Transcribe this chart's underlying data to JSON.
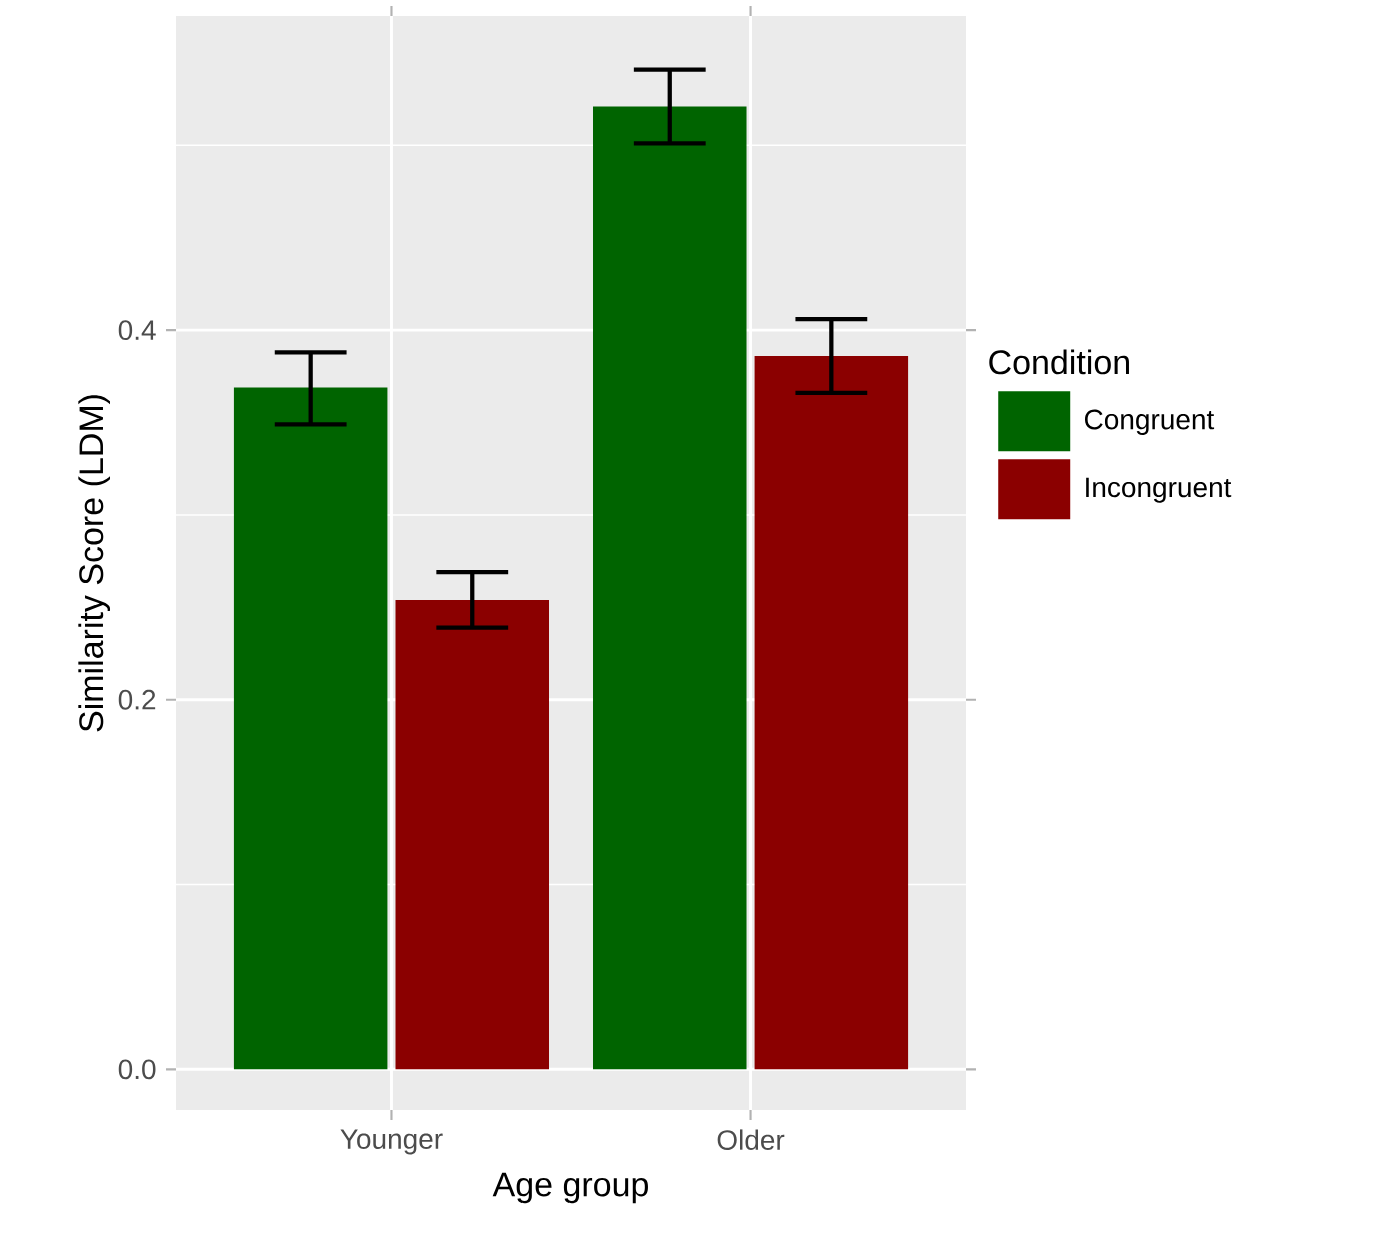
{
  "chart_data": {
    "type": "bar",
    "xlabel": "Age group",
    "ylabel": "Similarity Score (LDM)",
    "legend_title": "Condition",
    "categories": [
      "Younger",
      "Older"
    ],
    "series": [
      {
        "name": "Congruent",
        "color": "#006400",
        "values": [
          0.369,
          0.521
        ],
        "errors": [
          [
            0.349,
            0.388
          ],
          [
            0.501,
            0.541
          ]
        ]
      },
      {
        "name": "Incongruent",
        "color": "#8B0000",
        "values": [
          0.254,
          0.386
        ],
        "errors": [
          [
            0.239,
            0.269
          ],
          [
            0.366,
            0.406
          ]
        ]
      }
    ],
    "ylim": [
      -0.022,
      0.57
    ],
    "yticks": [
      {
        "value": 0,
        "label": "0.0"
      },
      {
        "value": 0.1,
        "label": null
      },
      0.2,
      {
        "value": 0.3,
        "label": null
      },
      0.4,
      {
        "value": 0.5,
        "label": null
      }
    ],
    "grid": true,
    "legend": "right"
  }
}
